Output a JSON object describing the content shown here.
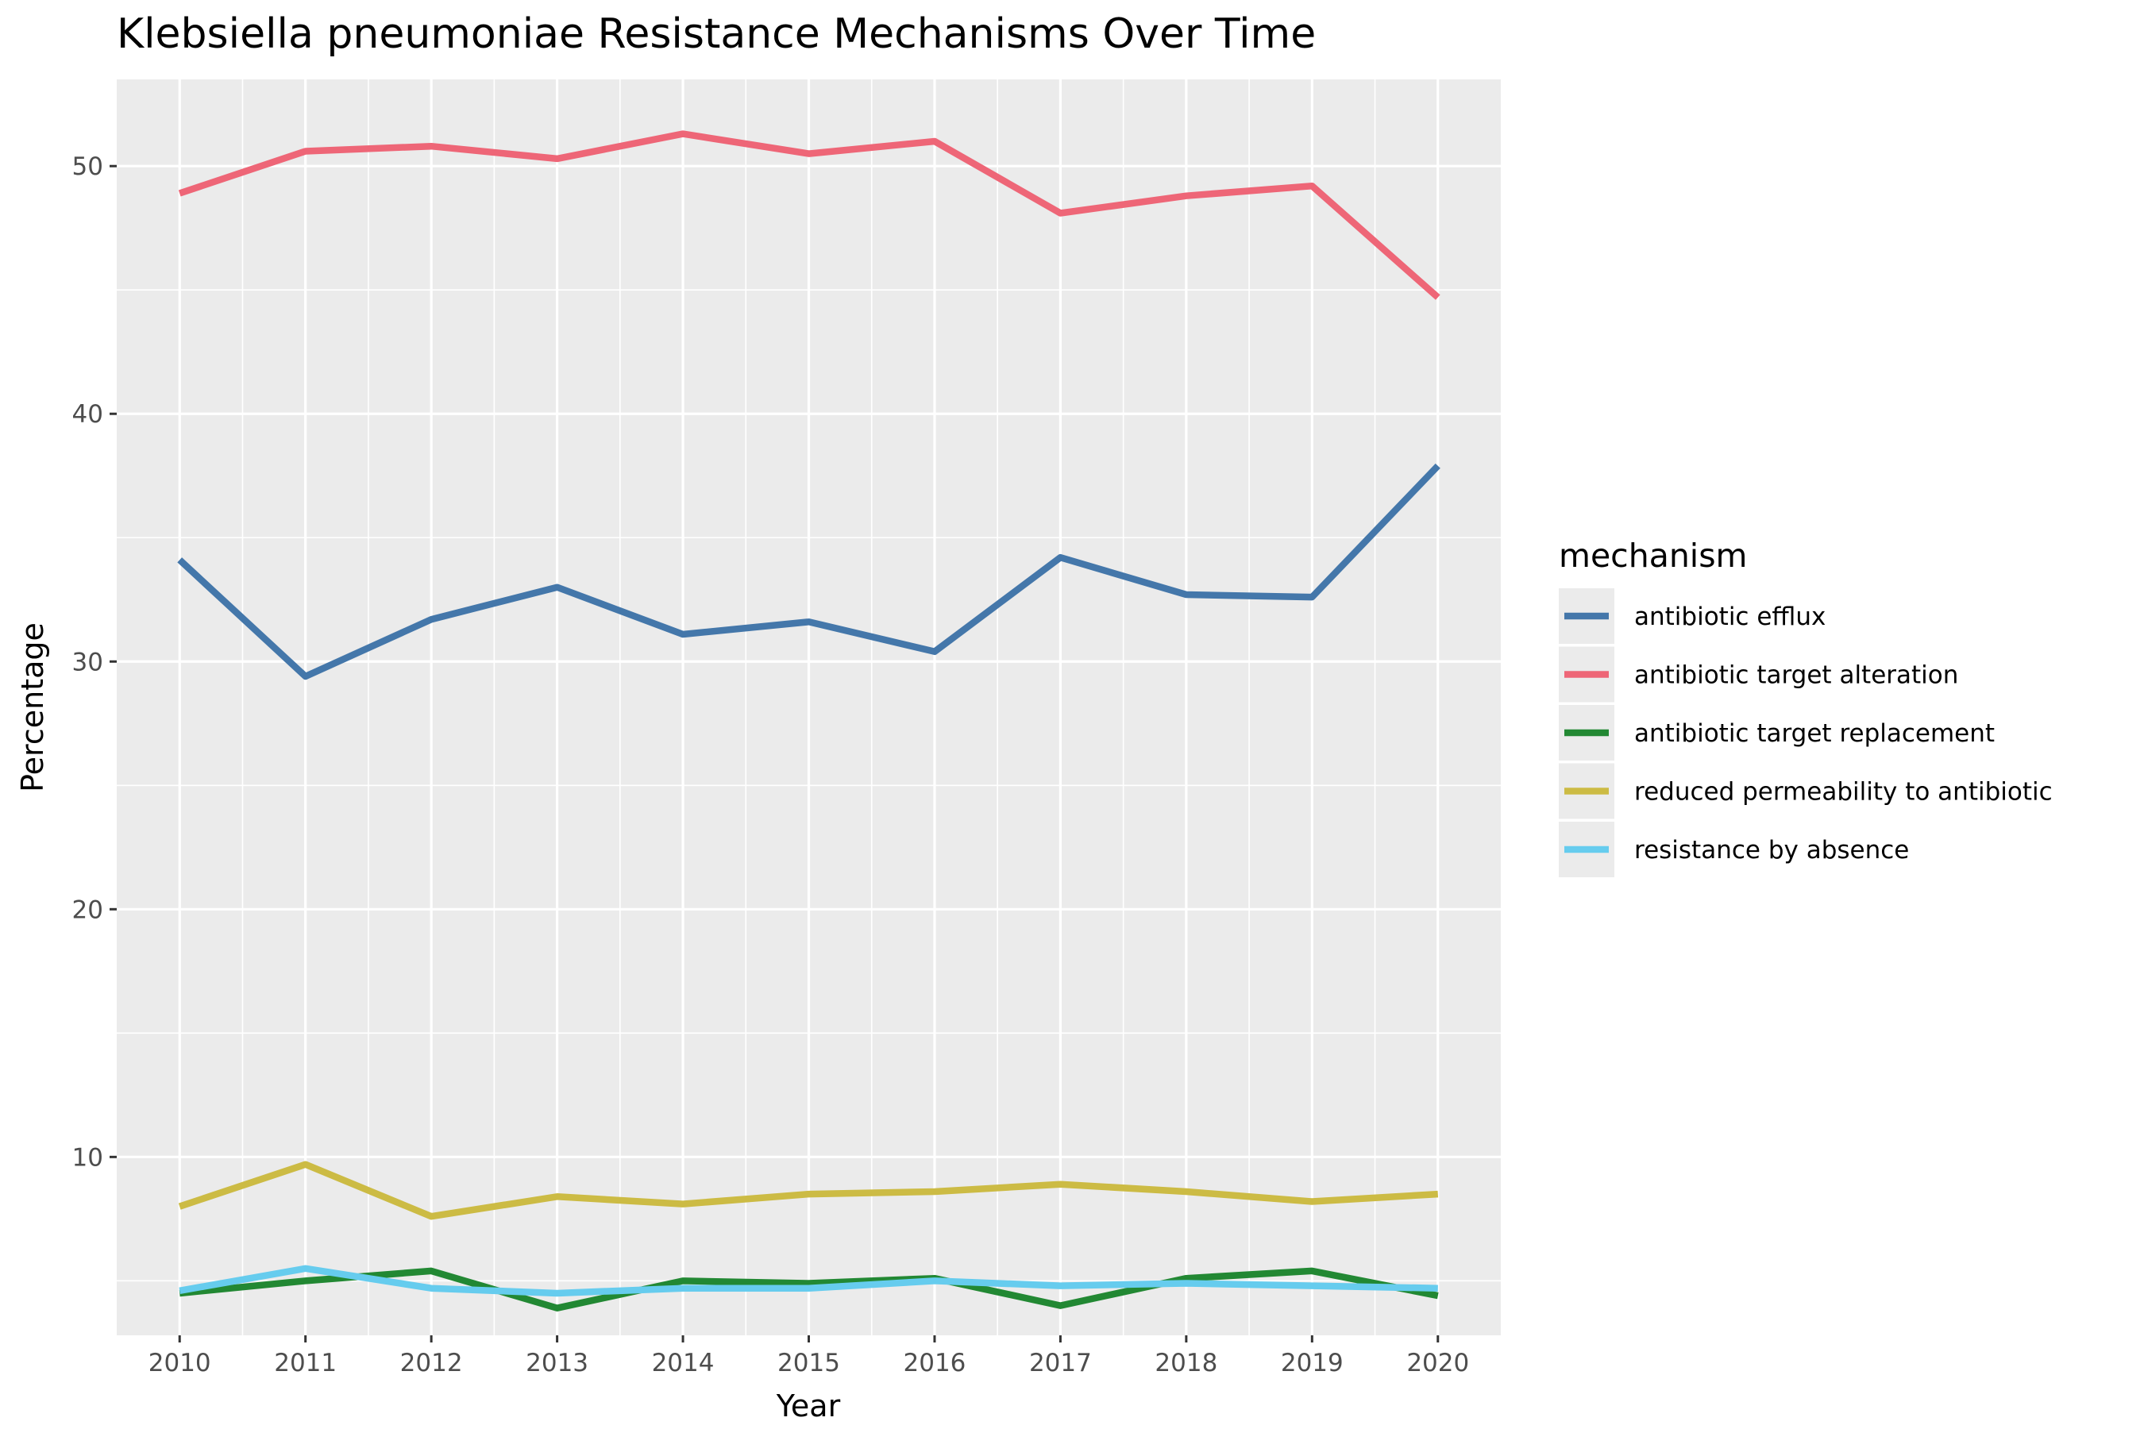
{
  "chart_data": {
    "type": "line",
    "title": "Klebsiella pneumoniae Resistance Mechanisms Over Time",
    "xlabel": "Year",
    "ylabel": "Percentage",
    "x": [
      2010,
      2011,
      2012,
      2013,
      2014,
      2015,
      2016,
      2017,
      2018,
      2019,
      2020
    ],
    "xlim": [
      2009.5,
      2020.5
    ],
    "ylim": [
      2.8,
      53.5
    ],
    "yticks": [
      10,
      20,
      30,
      40,
      50
    ],
    "grid": true,
    "legend": {
      "title": "mechanism",
      "position": "right"
    },
    "series": [
      {
        "name": "antibiotic efflux",
        "color": "#4477AA",
        "values": [
          34.1,
          29.4,
          31.7,
          33.0,
          31.1,
          31.6,
          30.4,
          34.2,
          32.7,
          32.6,
          37.9
        ]
      },
      {
        "name": "antibiotic target alteration",
        "color": "#EE6677",
        "values": [
          48.9,
          50.6,
          50.8,
          50.3,
          51.3,
          50.5,
          51.0,
          48.1,
          48.8,
          49.2,
          44.7
        ]
      },
      {
        "name": "antibiotic target replacement",
        "color": "#228833",
        "values": [
          4.5,
          5.0,
          5.4,
          3.9,
          5.0,
          4.9,
          5.1,
          4.0,
          5.1,
          5.4,
          4.4
        ]
      },
      {
        "name": "reduced permeability to antibiotic",
        "color": "#CCBB44",
        "values": [
          8.0,
          9.7,
          7.6,
          8.4,
          8.1,
          8.5,
          8.6,
          8.9,
          8.6,
          8.2,
          8.5
        ]
      },
      {
        "name": "resistance by absence",
        "color": "#66CCEE",
        "values": [
          4.6,
          5.5,
          4.7,
          4.5,
          4.7,
          4.7,
          5.0,
          4.8,
          4.9,
          4.8,
          4.7
        ]
      }
    ]
  }
}
